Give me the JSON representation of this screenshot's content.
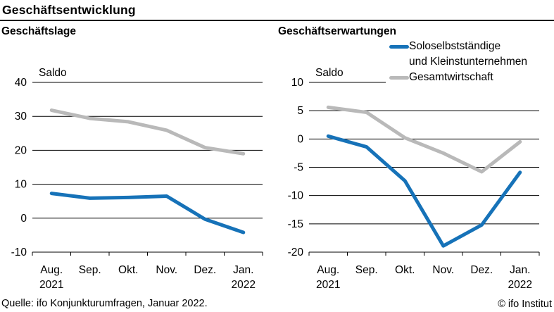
{
  "header": {
    "title": "Geschäftsentwicklung"
  },
  "footer": {
    "source": "Quelle: ifo Konjunkturumfragen, Januar 2022.",
    "copyright": "© ifo Institut"
  },
  "colors": {
    "series1": "#1672b8",
    "series2": "#b9b9b9",
    "axis": "#000000"
  },
  "legend": {
    "series1_line1": "Soloselbstständige",
    "series1_line2": "und Kleinstunternehmen",
    "series2": "Gesamtwirtschaft"
  },
  "chart_data": [
    {
      "type": "line",
      "name": "geschaeftslage",
      "title": "Geschäftslage",
      "ylabel": "Saldo",
      "xlabel": "",
      "categories": [
        "Aug.",
        "Sep.",
        "Okt.",
        "Nov.",
        "Dez.",
        "Jan."
      ],
      "year_first": "2021",
      "year_last": "2022",
      "series": [
        {
          "id": "soloselbststaendige",
          "name": "Soloselbstständige und Kleinstunternehmen",
          "color": "#1672b8",
          "values": [
            7.3,
            5.9,
            6.1,
            6.5,
            -0.3,
            -4.2
          ]
        },
        {
          "id": "gesamtwirtschaft",
          "name": "Gesamtwirtschaft",
          "color": "#b9b9b9",
          "values": [
            31.8,
            29.4,
            28.4,
            25.9,
            20.8,
            19.0
          ]
        }
      ],
      "ylim": [
        -10,
        40
      ],
      "yticks": [
        40,
        30,
        20,
        10,
        0,
        -10
      ],
      "grid": true,
      "legend_position": "none",
      "truncate_top_gridline": false
    },
    {
      "type": "line",
      "name": "geschaeftserwartungen",
      "title": "Geschäftserwartungen",
      "ylabel": "Saldo",
      "xlabel": "",
      "categories": [
        "Aug.",
        "Sep.",
        "Okt.",
        "Nov.",
        "Dez.",
        "Jan."
      ],
      "year_first": "2021",
      "year_last": "2022",
      "series": [
        {
          "id": "soloselbststaendige",
          "name": "Soloselbstständige und Kleinstunternehmen",
          "color": "#1672b8",
          "values": [
            0.5,
            -1.4,
            -7.4,
            -18.9,
            -15.2,
            -5.9
          ]
        },
        {
          "id": "gesamtwirtschaft",
          "name": "Gesamtwirtschaft",
          "color": "#b9b9b9",
          "values": [
            5.6,
            4.7,
            0.2,
            -2.5,
            -5.8,
            -0.5
          ]
        }
      ],
      "ylim": [
        -20,
        10
      ],
      "yticks": [
        10,
        5,
        0,
        -5,
        -10,
        -15,
        -20
      ],
      "grid": true,
      "legend_position": "top-right",
      "truncate_top_gridline": true
    }
  ]
}
